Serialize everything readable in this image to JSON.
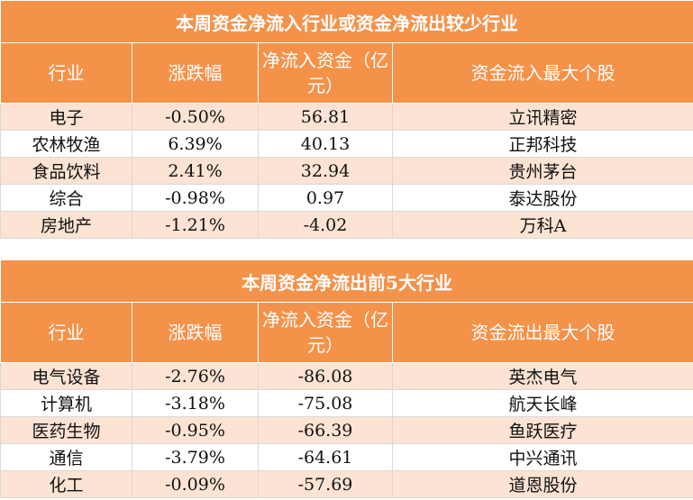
{
  "table1": {
    "title": "本周资金净流入行业或资金净流出较少行业",
    "headers": [
      "行业",
      "涨跌幅",
      "净流入资金（亿元）",
      "资金流入最大个股"
    ],
    "rows": [
      [
        "电子",
        "-0.50%",
        "56.81",
        "立讯精密"
      ],
      [
        "农林牧渔",
        "6.39%",
        "40.13",
        "正邦科技"
      ],
      [
        "食品饮料",
        "2.41%",
        "32.94",
        "贵州茅台"
      ],
      [
        "综合",
        "-0.98%",
        "0.97",
        "泰达股份"
      ],
      [
        "房地产",
        "-1.21%",
        "-4.02",
        "万科A"
      ]
    ]
  },
  "table2": {
    "title": "本周资金净流出前5大行业",
    "headers": [
      "行业",
      "涨跌幅",
      "净流入资金（亿元）",
      "资金流出最大个股"
    ],
    "rows": [
      [
        "电气设备",
        "-2.76%",
        "-86.08",
        "英杰电气"
      ],
      [
        "计算机",
        "-3.18%",
        "-75.08",
        "航天长峰"
      ],
      [
        "医药生物",
        "-0.95%",
        "-66.39",
        "鱼跃医疗"
      ],
      [
        "通信",
        "-3.79%",
        "-64.61",
        "中兴通讯"
      ],
      [
        "化工",
        "-0.09%",
        "-57.69",
        "道恩股份"
      ]
    ]
  },
  "colors": {
    "header_bg": "#f4924a",
    "stripe_bg": "#fce3d3",
    "header_text": "#ffffff"
  }
}
